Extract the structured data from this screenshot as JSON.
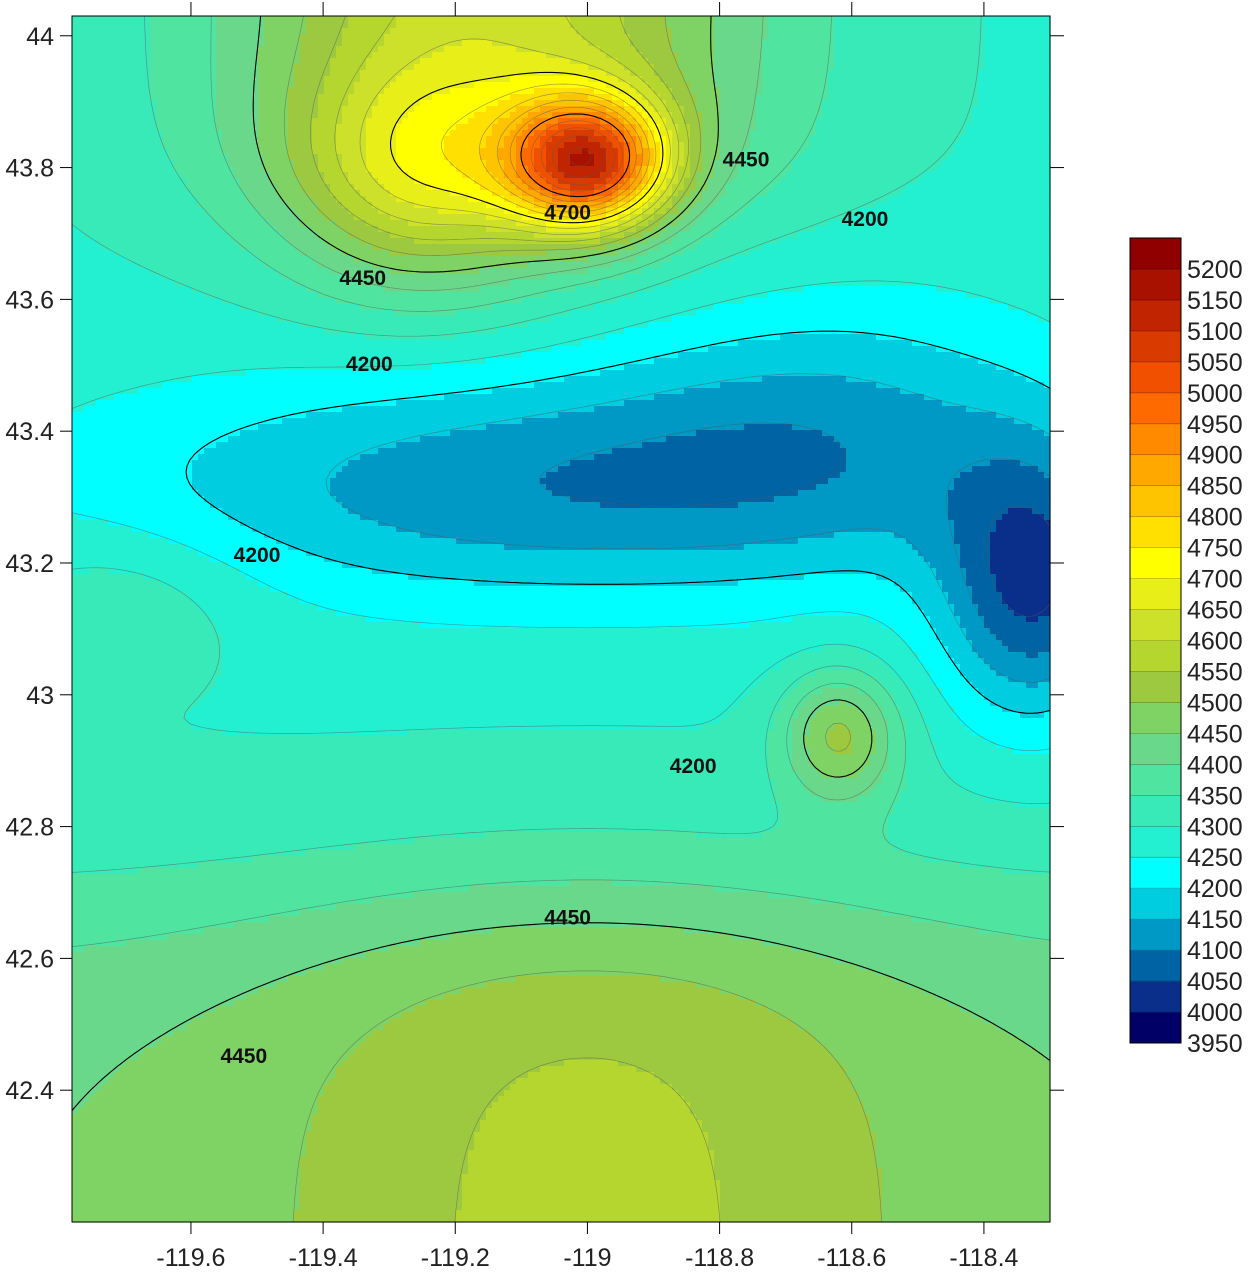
{
  "chart_data": {
    "type": "contour",
    "title": "",
    "xlabel": "",
    "ylabel": "",
    "xlim": [
      -119.78,
      -118.3
    ],
    "ylim": [
      42.2,
      44.03
    ],
    "grid": false,
    "x_ticks": [
      -119.6,
      -119.4,
      -119.2,
      -119,
      -118.8,
      -118.6,
      -118.4
    ],
    "x_tick_labels": [
      "-119.6",
      "-119.4",
      "-119.2",
      "-119",
      "-118.8",
      "-118.6",
      "-118.4"
    ],
    "y_ticks": [
      42.4,
      42.6,
      42.8,
      43,
      43.2,
      43.4,
      43.6,
      43.8,
      44
    ],
    "y_tick_labels": [
      "42.4",
      "42.6",
      "42.8",
      "43",
      "43.2",
      "43.4",
      "43.6",
      "43.8",
      "44"
    ],
    "colorbar": {
      "levels": [
        3950,
        4000,
        4050,
        4100,
        4150,
        4200,
        4250,
        4300,
        4350,
        4400,
        4450,
        4500,
        4550,
        4600,
        4650,
        4700,
        4750,
        4800,
        4850,
        4900,
        4950,
        5000,
        5050,
        5100,
        5150,
        5200
      ],
      "labels": [
        "3950",
        "4000",
        "4050",
        "4100",
        "4150",
        "4200",
        "4250",
        "4300",
        "4350",
        "4400",
        "4450",
        "4500",
        "4550",
        "4600",
        "4650",
        "4700",
        "4750",
        "4800",
        "4850",
        "4900",
        "4950",
        "5000",
        "5050",
        "5100",
        "5150",
        "5200"
      ],
      "colors": [
        "#000066",
        "#0a2f8a",
        "#0063a3",
        "#0098c4",
        "#00cde0",
        "#00ffff",
        "#22f0d0",
        "#38eab8",
        "#4fe4a0",
        "#6ad88a",
        "#7fd264",
        "#9cc940",
        "#b4d62e",
        "#cde02a",
        "#e8ee18",
        "#ffff00",
        "#ffe000",
        "#ffc400",
        "#ffa800",
        "#ff8a00",
        "#ff6a00",
        "#f05000",
        "#d83a00",
        "#c02400",
        "#a81000",
        "#900000"
      ]
    },
    "contour_labels": [
      {
        "text": "4700",
        "x": -119.03,
        "y": 43.73
      },
      {
        "text": "4450",
        "x": -118.76,
        "y": 43.81
      },
      {
        "text": "4200",
        "x": -118.58,
        "y": 43.72
      },
      {
        "text": "4450",
        "x": -119.34,
        "y": 43.63
      },
      {
        "text": "4200",
        "x": -119.33,
        "y": 43.5
      },
      {
        "text": "4200",
        "x": -119.5,
        "y": 43.21
      },
      {
        "text": "4200",
        "x": -118.84,
        "y": 42.89
      },
      {
        "text": "4450",
        "x": -119.03,
        "y": 42.66
      },
      {
        "text": "4450",
        "x": -119.52,
        "y": 42.45
      }
    ],
    "features": [
      {
        "kind": "peak",
        "x": -119,
        "y": 43.81,
        "value": 5200
      },
      {
        "kind": "low",
        "x": -118.33,
        "y": 43.16,
        "value": 3950
      },
      {
        "kind": "local-high",
        "x": -118.62,
        "y": 42.94,
        "value": 4500
      }
    ]
  }
}
